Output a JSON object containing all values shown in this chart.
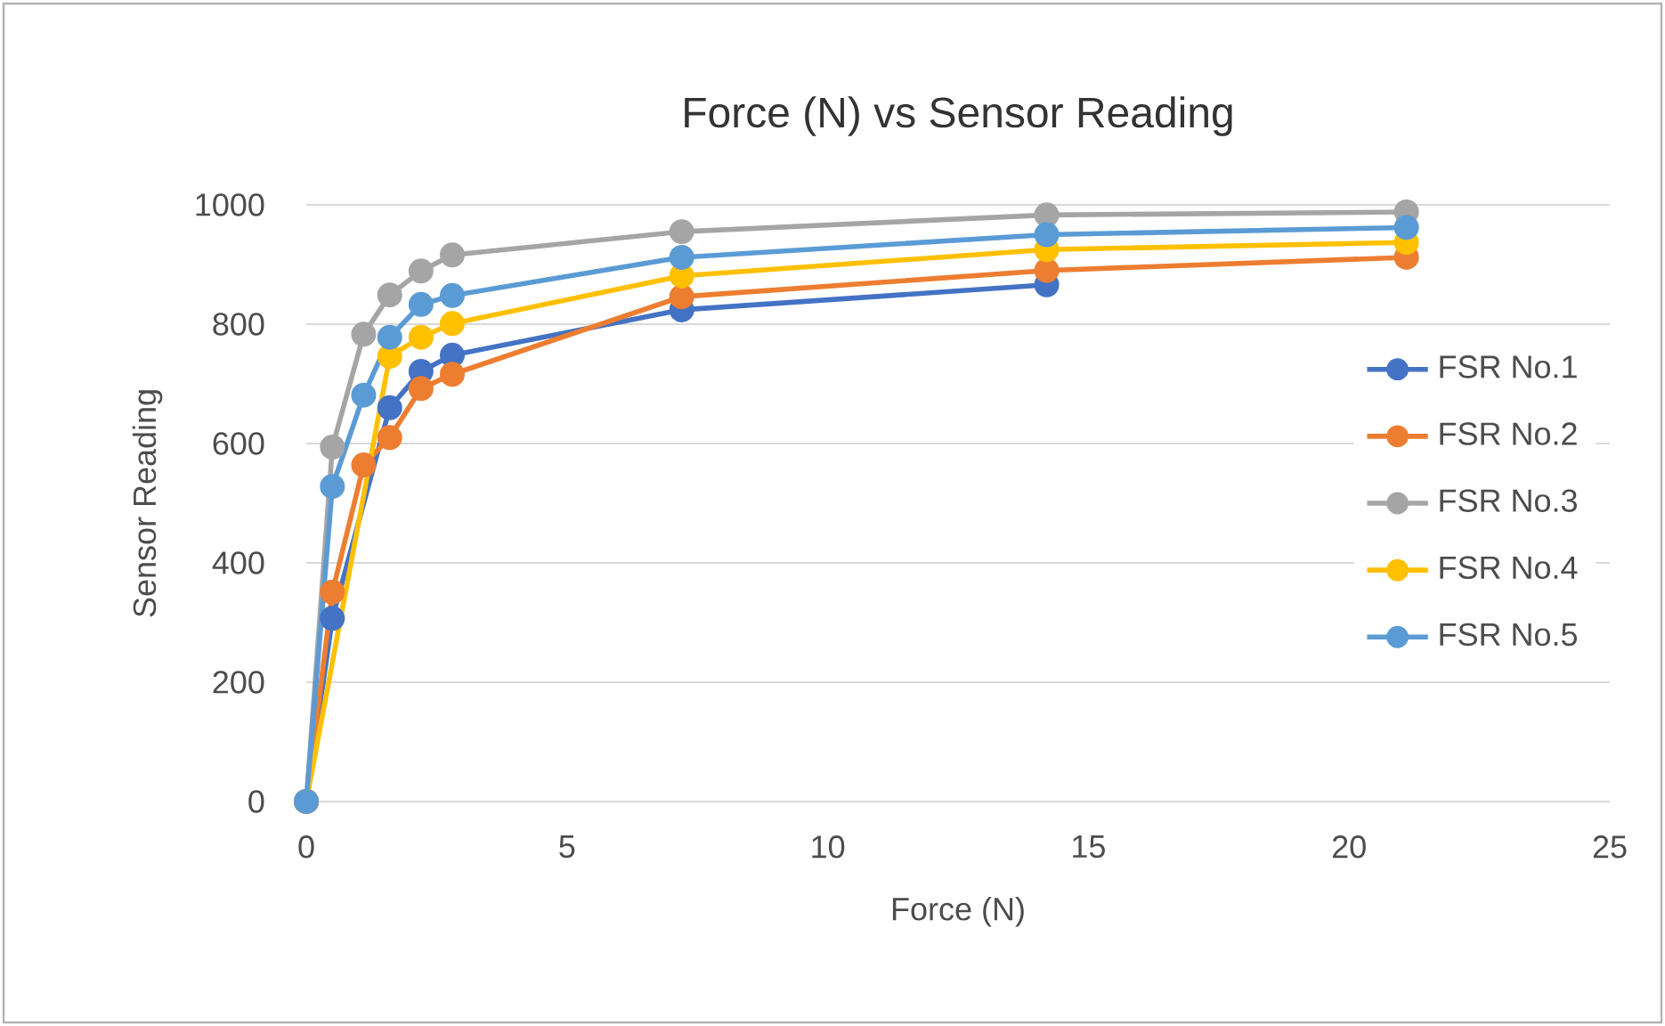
{
  "chart_data": {
    "type": "line",
    "title": "Force (N) vs Sensor Reading",
    "xlabel": "Force (N)",
    "ylabel": "Sensor Reading",
    "x": [
      0,
      0.5,
      1.1,
      1.6,
      2.2,
      2.8,
      7.2,
      14.2,
      21.1
    ],
    "series": [
      {
        "name": "FSR No.1",
        "color": "#4472c4",
        "values": [
          0,
          307,
          null,
          660,
          721,
          748,
          824,
          866,
          null
        ]
      },
      {
        "name": "FSR No.2",
        "color": "#ed7d31",
        "values": [
          0,
          351,
          564,
          610,
          692,
          716,
          846,
          890,
          912
        ]
      },
      {
        "name": "FSR No.3",
        "color": "#a5a5a5",
        "values": [
          0,
          594,
          783,
          849,
          889,
          916,
          955,
          983,
          988
        ]
      },
      {
        "name": "FSR No.4",
        "color": "#ffc000",
        "values": [
          0,
          null,
          null,
          746,
          778,
          801,
          881,
          925,
          937
        ]
      },
      {
        "name": "FSR No.5",
        "color": "#5b9bd5",
        "values": [
          0,
          528,
          681,
          778,
          833,
          848,
          912,
          950,
          962
        ]
      }
    ],
    "xlim": [
      0,
      25
    ],
    "xticks": [
      0,
      5,
      10,
      15,
      20,
      25
    ],
    "ylim": [
      0,
      1000
    ],
    "yticks": [
      0,
      200,
      400,
      600,
      800,
      1000
    ],
    "grid": "y",
    "legend": "right",
    "marker": "circle",
    "line_style": "solid"
  }
}
